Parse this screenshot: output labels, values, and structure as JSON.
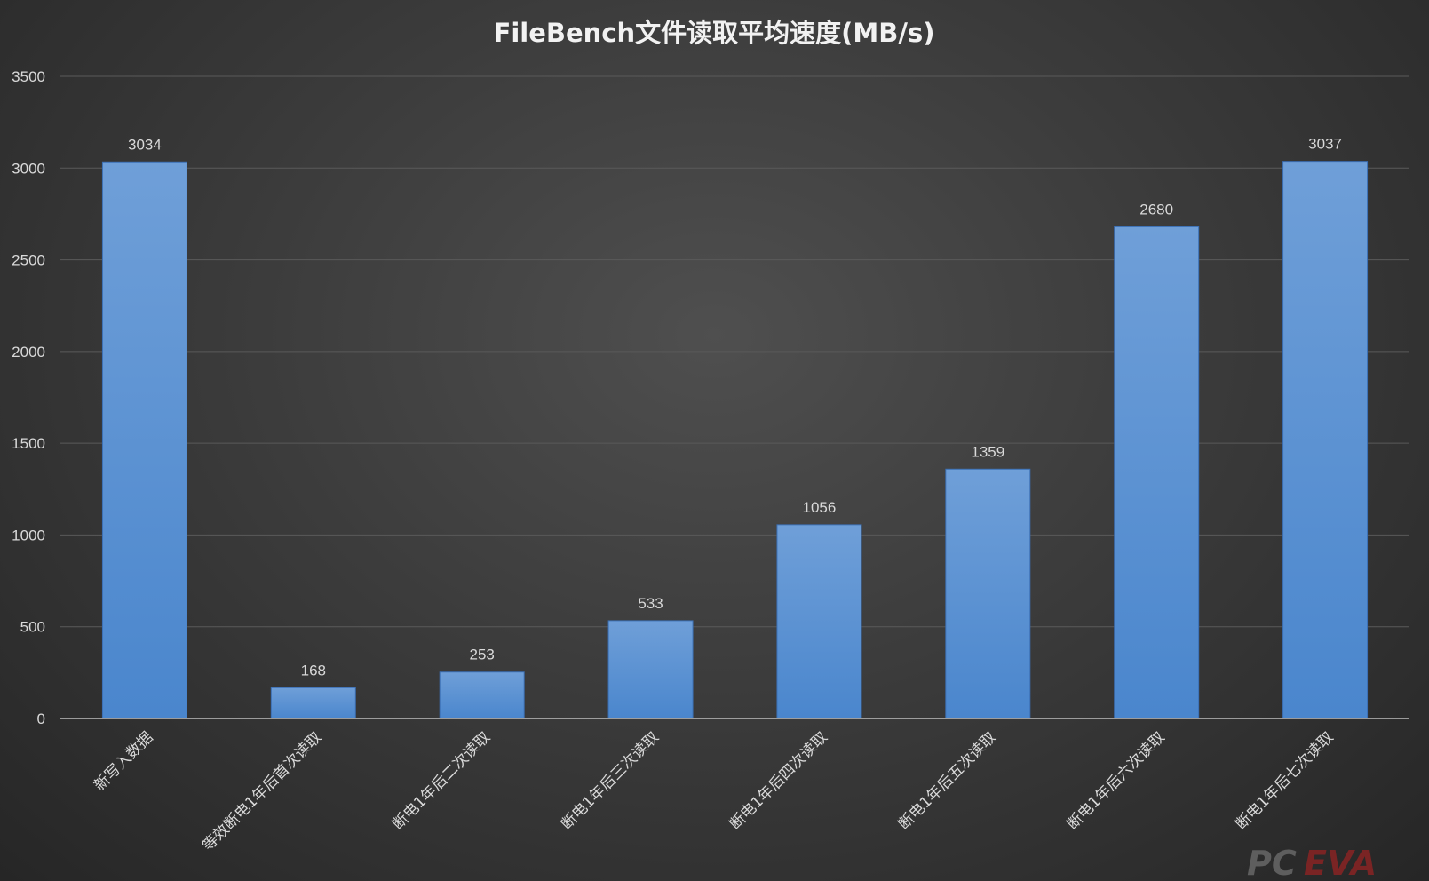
{
  "chart_data": {
    "type": "bar",
    "title": "FileBench文件读取平均速度(MB/s)",
    "categories": [
      "新写入数据",
      "等效断电1年后首次读取",
      "断电1年后二次读取",
      "断电1年后三次读取",
      "断电1年后四次读取",
      "断电1年后五次读取",
      "断电1年后六次读取",
      "断电1年后七次读取"
    ],
    "values": [
      3034,
      168,
      253,
      533,
      1056,
      1359,
      2680,
      3037
    ],
    "ylim": [
      0,
      3500
    ],
    "yticks": [
      0,
      500,
      1000,
      1500,
      2000,
      2500,
      3000,
      3500
    ],
    "xlabel": "",
    "ylabel": "",
    "grid": true,
    "legend": "none",
    "bar_color_top": "#6f9fd8",
    "bar_color_bottom": "#4a86cd"
  },
  "watermark": {
    "pc": "PC",
    "eva": "EVA"
  }
}
